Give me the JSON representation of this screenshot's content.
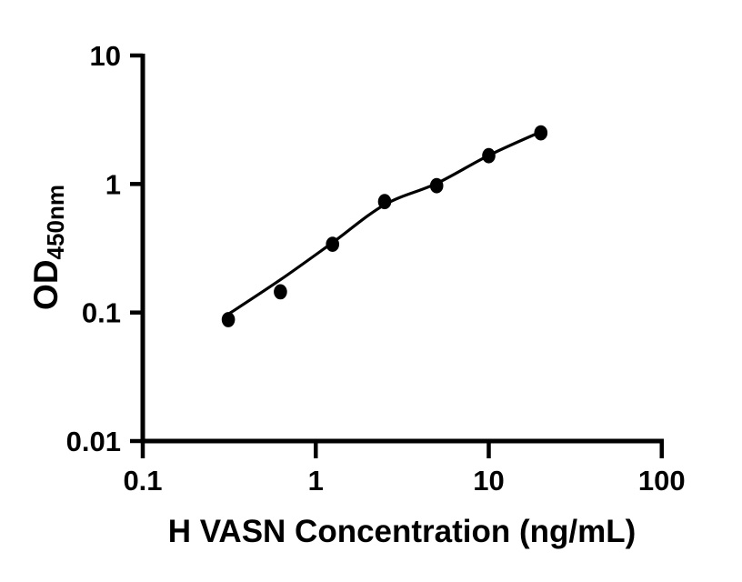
{
  "figure": {
    "background": "#ffffff",
    "ink": "#000000"
  },
  "chart_data": {
    "type": "scatter",
    "xlabel": "H VASN Concentration (ng/mL)",
    "ylabel_main": "OD",
    "ylabel_sub": "450nm",
    "x_scale": "log",
    "y_scale": "log",
    "xlim": [
      0.1,
      100
    ],
    "ylim": [
      0.01,
      10
    ],
    "grid": false,
    "legend": "none",
    "x_ticks": [
      {
        "value": 0.1,
        "label": "0.1"
      },
      {
        "value": 1,
        "label": "1"
      },
      {
        "value": 10,
        "label": "10"
      },
      {
        "value": 100,
        "label": "100"
      }
    ],
    "y_ticks": [
      {
        "value": 0.01,
        "label": "0.01"
      },
      {
        "value": 0.1,
        "label": "0.1"
      },
      {
        "value": 1,
        "label": "1"
      },
      {
        "value": 10,
        "label": "10"
      }
    ],
    "series": [
      {
        "marker": "filled-circle",
        "color": "#000000",
        "points": [
          {
            "x": 0.3125,
            "y": 0.088
          },
          {
            "x": 0.625,
            "y": 0.145
          },
          {
            "x": 1.25,
            "y": 0.34
          },
          {
            "x": 2.5,
            "y": 0.73
          },
          {
            "x": 5,
            "y": 0.97
          },
          {
            "x": 10,
            "y": 1.66
          },
          {
            "x": 20,
            "y": 2.5
          }
        ]
      }
    ],
    "fit_curve": {
      "color": "#000000",
      "samples": [
        {
          "x": 0.3125,
          "y": 0.097
        },
        {
          "x": 0.625,
          "y": 0.18
        },
        {
          "x": 1.25,
          "y": 0.35
        },
        {
          "x": 2.5,
          "y": 0.69
        },
        {
          "x": 5,
          "y": 1.01
        },
        {
          "x": 10,
          "y": 1.67
        },
        {
          "x": 20,
          "y": 2.55
        }
      ]
    }
  }
}
